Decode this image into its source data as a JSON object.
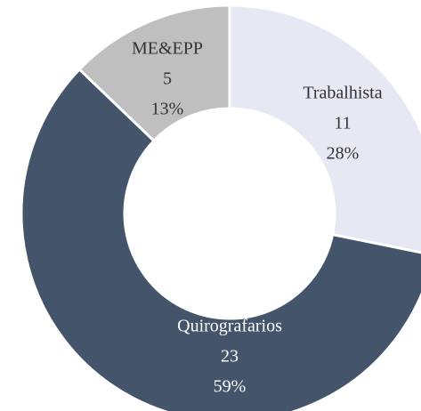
{
  "chart_data": {
    "type": "donut",
    "categories": [
      "Trabalhista",
      "Quirografarios",
      "ME&EPP"
    ],
    "values": [
      11,
      23,
      5
    ],
    "percentages": [
      28,
      59,
      13
    ],
    "percentage_labels": [
      "28%",
      "59%",
      "13%"
    ],
    "colors": [
      "#e6e8f4",
      "#44546a",
      "#bfbfbf"
    ]
  }
}
